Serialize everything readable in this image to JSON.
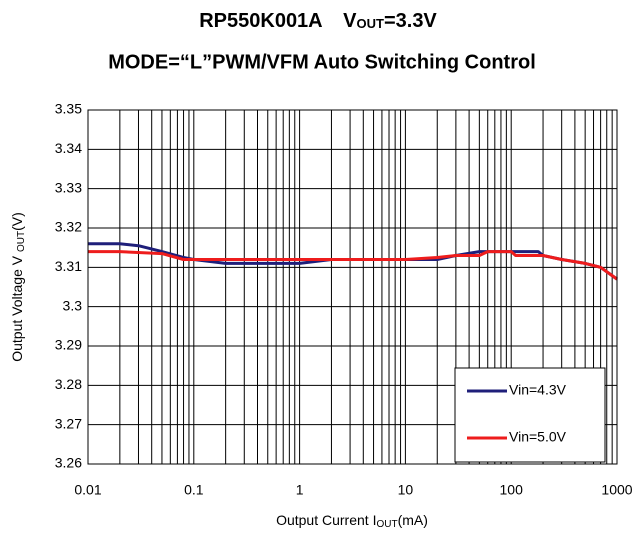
{
  "chart_data": {
    "type": "line",
    "title": [
      "RP550K001A",
      "V",
      "OUT",
      "=3.3V"
    ],
    "subtitle": "MODE=“L”PWM/VFM Auto Switching Control",
    "ylabel": [
      "Output Voltage V ",
      "OUT",
      "(V)"
    ],
    "xlabel": [
      "Output Current I",
      "OUT",
      "(mA)"
    ],
    "xscale": "log",
    "minor_grid": true,
    "grid": true,
    "legend": "lower right",
    "xlim": [
      0.01,
      1000
    ],
    "xticks": [
      0.01,
      0.1,
      1,
      10,
      100,
      1000
    ],
    "ylim": [
      3.26,
      3.35
    ],
    "yticks": [
      3.26,
      3.27,
      3.28,
      3.29,
      3.3,
      3.31,
      3.32,
      3.33,
      3.34,
      3.35
    ],
    "series": [
      {
        "name": "Vin=4.3V",
        "color": "#1f1f7a",
        "x": [
          0.01,
          0.02,
          0.03,
          0.05,
          0.08,
          0.1,
          0.2,
          0.5,
          1,
          2,
          5,
          10,
          20,
          30,
          50,
          100,
          180,
          200,
          300,
          500,
          700,
          1000
        ],
        "values": [
          3.316,
          3.316,
          3.3155,
          3.314,
          3.3125,
          3.312,
          3.311,
          3.311,
          3.311,
          3.312,
          3.312,
          3.312,
          3.312,
          3.313,
          3.314,
          3.314,
          3.314,
          3.313,
          3.312,
          3.311,
          3.31,
          3.307
        ]
      },
      {
        "name": "Vin=5.0V",
        "color": "#ee1c1c",
        "x": [
          0.01,
          0.02,
          0.05,
          0.08,
          0.1,
          1,
          10,
          20,
          30,
          50,
          60,
          100,
          110,
          200,
          300,
          500,
          700,
          1000
        ],
        "values": [
          3.314,
          3.314,
          3.3135,
          3.312,
          3.312,
          3.312,
          3.312,
          3.3125,
          3.313,
          3.313,
          3.314,
          3.314,
          3.313,
          3.313,
          3.312,
          3.311,
          3.31,
          3.307
        ]
      }
    ]
  }
}
